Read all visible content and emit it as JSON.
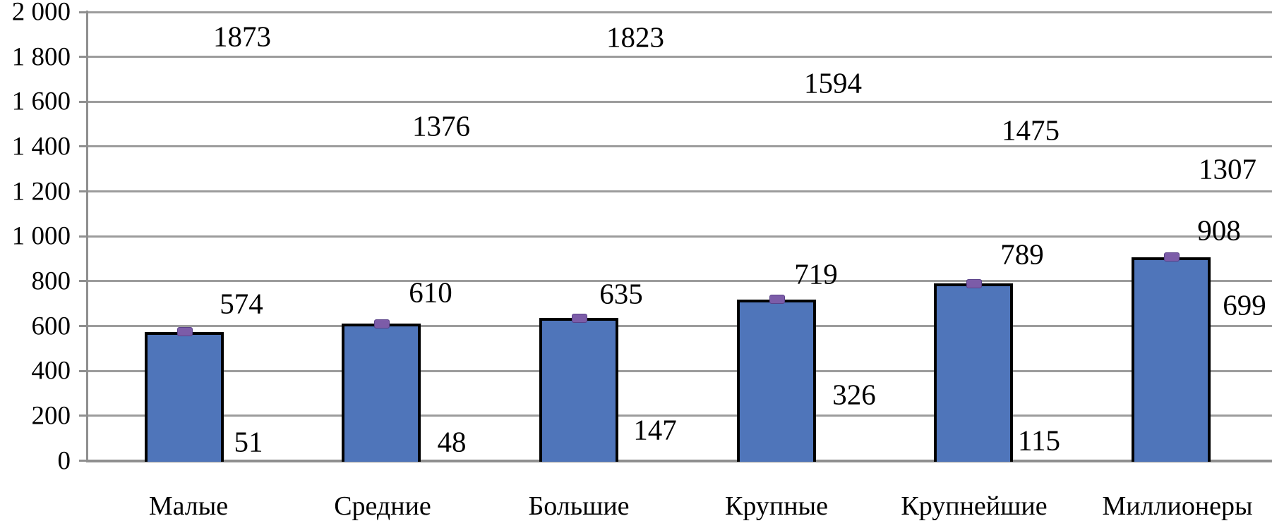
{
  "chart_data": {
    "type": "bar",
    "title": "",
    "xlabel": "",
    "ylabel": "",
    "categories": [
      "Малые",
      "Средние",
      "Большие",
      "Крупные",
      "Крупнейшие",
      "Миллионеры"
    ],
    "bar_values": [
      574,
      610,
      635,
      719,
      789,
      908
    ],
    "upper_labels": [
      1873,
      1376,
      1823,
      1594,
      1475,
      1307
    ],
    "lower_labels": [
      51,
      48,
      147,
      326,
      115,
      699
    ],
    "y_axis": {
      "min": 0,
      "max": 2000,
      "step": 200,
      "tick_labels": [
        "0",
        "200",
        "400",
        "600",
        "800",
        "1 000",
        "1 200",
        "1 400",
        "1 600",
        "1 800",
        "2 000"
      ]
    },
    "grid": true,
    "legend": false,
    "colors": {
      "bar_fill": "#4F75BA",
      "bar_border": "#000000",
      "marker_fill": "#7C5CA8",
      "marker_border": "#5A4189",
      "gridline": "#9C9C9C",
      "axis": "#8F8F8F",
      "text": "#000000",
      "background": "#FFFFFF"
    }
  }
}
